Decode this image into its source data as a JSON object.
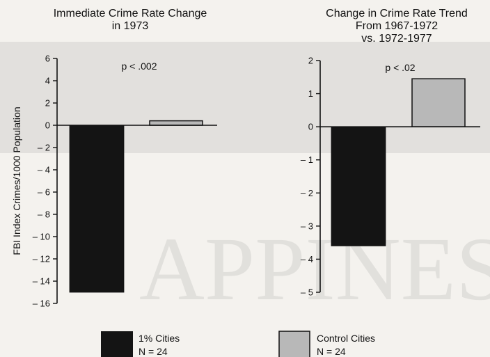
{
  "colors": {
    "treated": "#141414",
    "control": "#b8b8b8",
    "axis": "#111111",
    "background": "#f4f2ee"
  },
  "ylabel": "FBI Index Crimes/1000 Population",
  "legend": {
    "placement": "bottom",
    "items": [
      {
        "label": "1% Cities",
        "sublabel": "N = 24",
        "color": "#141414"
      },
      {
        "label": "Control Cities",
        "sublabel": "N = 24",
        "color": "#b8b8b8"
      }
    ]
  },
  "chart_data": [
    {
      "type": "bar",
      "title_lines": [
        "Immediate Crime Rate Change",
        "in 1973"
      ],
      "annotation": "p < .002",
      "categories": [
        "1% Cities",
        "Control Cities"
      ],
      "values": [
        -15,
        0.4
      ],
      "ylim": [
        -16,
        6
      ],
      "ticks": [
        "6",
        "4",
        "2",
        "0",
        "– 2",
        "– 4",
        "– 6",
        "– 8",
        "– 10",
        "– 12",
        "– 14",
        "– 16"
      ],
      "tick_values": [
        6,
        4,
        2,
        0,
        -2,
        -4,
        -6,
        -8,
        -10,
        -12,
        -14,
        -16
      ],
      "grid": false
    },
    {
      "type": "bar",
      "title_lines": [
        "Change in Crime Rate Trend",
        "From 1967-1972",
        "vs. 1972-1977"
      ],
      "annotation": "p < .02",
      "categories": [
        "1% Cities",
        "Control Cities"
      ],
      "values": [
        -3.6,
        1.45
      ],
      "ylim": [
        -5,
        2
      ],
      "ticks": [
        "2",
        "1",
        "0",
        "– 1",
        "– 2",
        "– 3",
        "– 4",
        "– 5"
      ],
      "tick_values": [
        2,
        1,
        0,
        -1,
        -2,
        -3,
        -4,
        -5
      ],
      "grid": false
    }
  ]
}
